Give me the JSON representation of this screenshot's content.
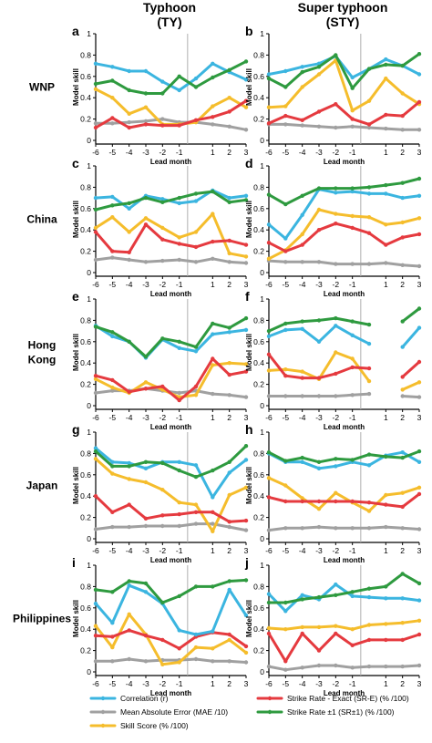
{
  "column_titles": [
    {
      "line1": "Typhoon",
      "line2": "(TY)"
    },
    {
      "line1": "Super typhoon",
      "line2": "(STY)"
    }
  ],
  "row_labels": [
    [
      "WNP"
    ],
    [
      "China"
    ],
    [
      "Hong",
      "Kong"
    ],
    [
      "Japan"
    ],
    [
      "Philippines"
    ]
  ],
  "colors": {
    "corr": "#3bb5e0",
    "mae": "#a0a0a0",
    "skill": "#f5bd2c",
    "sre": "#e53a3f",
    "sr1": "#2e9a3f",
    "axis": "#000000",
    "divider": "#b0b0b0"
  },
  "legend": [
    {
      "key": "corr",
      "label": "Correlation (r)"
    },
    {
      "key": "sre",
      "label": "Strike Rate - Exact (SR-E) (% /100)"
    },
    {
      "key": "mae",
      "label": "Mean Absolute Error (MAE /10)"
    },
    {
      "key": "sr1",
      "label": "Strike Rate ±1 (SR±1) (% /100)"
    },
    {
      "key": "skill",
      "label": "Skill Score (% /100)"
    }
  ],
  "chart_data": {
    "type": "line",
    "x": [
      -6,
      -5,
      -4,
      -3,
      -2,
      -1,
      0,
      1,
      2,
      3
    ],
    "x_tick_labels": [
      "-6",
      "-5",
      "-4",
      "-3",
      "-2",
      "-1",
      "1",
      "2",
      "3"
    ],
    "y_ticks": [
      "0",
      "0.2",
      "0.4",
      "0.6",
      "0.8",
      "1"
    ],
    "ylim": [
      0,
      1
    ],
    "xlabel": "Lead month",
    "ylabel": "Model skill",
    "divider_x": -0.5,
    "panels": [
      {
        "letter": "a",
        "row": 0,
        "col": 0,
        "series": {
          "corr": [
            0.72,
            0.69,
            0.65,
            0.65,
            0.55,
            0.47,
            0.58,
            0.72,
            0.64,
            0.57
          ],
          "mae": [
            0.16,
            0.16,
            0.17,
            0.18,
            0.2,
            0.17,
            0.17,
            0.15,
            0.13,
            0.1
          ],
          "skill": [
            0.48,
            0.4,
            0.25,
            0.31,
            0.15,
            0.15,
            0.17,
            0.32,
            0.4,
            0.31
          ],
          "sre": [
            0.12,
            0.21,
            0.12,
            0.15,
            0.14,
            0.14,
            0.19,
            0.22,
            0.27,
            0.37
          ],
          "sr1": [
            0.53,
            0.56,
            0.47,
            0.44,
            0.44,
            0.6,
            0.5,
            0.59,
            0.66,
            0.74
          ]
        }
      },
      {
        "letter": "b",
        "row": 0,
        "col": 1,
        "series": {
          "corr": [
            0.62,
            0.65,
            0.69,
            0.72,
            0.79,
            0.59,
            0.67,
            0.76,
            0.7,
            0.62
          ],
          "mae": [
            0.15,
            0.15,
            0.14,
            0.13,
            0.12,
            0.13,
            0.12,
            0.11,
            0.1,
            0.1
          ],
          "skill": [
            0.31,
            0.32,
            0.5,
            0.62,
            0.75,
            0.28,
            0.37,
            0.58,
            0.44,
            0.34
          ],
          "sre": [
            0.16,
            0.23,
            0.19,
            0.27,
            0.34,
            0.2,
            0.15,
            0.24,
            0.23,
            0.36
          ],
          "sr1": [
            0.58,
            0.5,
            0.64,
            0.69,
            0.8,
            0.49,
            0.67,
            0.71,
            0.7,
            0.81
          ]
        }
      },
      {
        "letter": "c",
        "row": 1,
        "col": 0,
        "series": {
          "corr": [
            0.7,
            0.71,
            0.6,
            0.72,
            0.69,
            0.65,
            0.67,
            0.77,
            0.7,
            0.72
          ],
          "mae": [
            0.12,
            0.14,
            0.12,
            0.1,
            0.11,
            0.12,
            0.1,
            0.13,
            0.1,
            0.09
          ],
          "skill": [
            0.42,
            0.52,
            0.38,
            0.51,
            0.42,
            0.33,
            0.38,
            0.55,
            0.18,
            0.15
          ],
          "sre": [
            0.38,
            0.2,
            0.19,
            0.45,
            0.31,
            0.27,
            0.24,
            0.29,
            0.3,
            0.26
          ],
          "sr1": [
            0.59,
            0.63,
            0.65,
            0.7,
            0.66,
            0.7,
            0.74,
            0.76,
            0.66,
            0.68
          ]
        }
      },
      {
        "letter": "d",
        "row": 1,
        "col": 1,
        "series": {
          "corr": [
            0.45,
            0.32,
            0.54,
            0.78,
            0.75,
            0.76,
            0.74,
            0.74,
            0.7,
            0.72
          ],
          "mae": [
            0.11,
            0.1,
            0.1,
            0.1,
            0.08,
            0.08,
            0.08,
            0.09,
            0.07,
            0.06
          ],
          "skill": [
            0.13,
            0.21,
            0.36,
            0.59,
            0.55,
            0.53,
            0.52,
            0.45,
            0.47,
            0.51
          ],
          "sre": [
            0.28,
            0.2,
            0.26,
            0.4,
            0.46,
            0.42,
            0.37,
            0.26,
            0.33,
            0.36
          ],
          "sr1": [
            0.73,
            0.64,
            0.72,
            0.79,
            0.79,
            0.79,
            0.8,
            0.82,
            0.84,
            0.88
          ]
        }
      },
      {
        "letter": "e",
        "row": 2,
        "col": 0,
        "series": {
          "corr": [
            0.75,
            0.65,
            0.6,
            0.45,
            0.62,
            0.54,
            0.51,
            0.67,
            0.69,
            0.71
          ],
          "mae": [
            0.12,
            0.14,
            0.14,
            0.16,
            0.14,
            0.12,
            0.14,
            0.11,
            0.1,
            0.08
          ],
          "skill": [
            0.25,
            0.17,
            0.12,
            0.22,
            0.15,
            0.08,
            0.1,
            0.38,
            0.4,
            0.39
          ],
          "sre": [
            0.28,
            0.24,
            0.13,
            0.16,
            0.18,
            0.05,
            0.18,
            0.44,
            0.29,
            0.32
          ],
          "sr1": [
            0.74,
            0.69,
            0.6,
            0.46,
            0.63,
            0.6,
            0.55,
            0.77,
            0.73,
            0.82
          ]
        }
      },
      {
        "letter": "f",
        "row": 2,
        "col": 1,
        "series": {
          "corr": [
            0.65,
            0.71,
            0.72,
            0.6,
            0.75,
            0.66,
            0.58,
            null,
            0.55,
            0.73
          ],
          "mae": [
            0.09,
            0.09,
            0.09,
            0.09,
            0.09,
            0.1,
            0.11,
            null,
            0.09,
            0.08
          ],
          "skill": [
            0.33,
            0.34,
            0.32,
            0.25,
            0.5,
            0.44,
            0.23,
            null,
            0.15,
            0.22
          ],
          "sre": [
            0.48,
            0.28,
            0.26,
            0.26,
            0.3,
            0.36,
            0.35,
            null,
            0.27,
            0.41
          ],
          "sr1": [
            0.7,
            0.77,
            0.79,
            0.8,
            0.82,
            0.79,
            0.76,
            null,
            0.79,
            0.91
          ]
        }
      },
      {
        "letter": "g",
        "row": 3,
        "col": 0,
        "series": {
          "corr": [
            0.85,
            0.72,
            0.71,
            0.66,
            0.72,
            0.72,
            0.69,
            0.39,
            0.62,
            0.74
          ],
          "mae": [
            0.09,
            0.11,
            0.11,
            0.12,
            0.12,
            0.12,
            0.14,
            0.14,
            0.11,
            0.08
          ],
          "skill": [
            0.75,
            0.61,
            0.56,
            0.53,
            0.46,
            0.34,
            0.32,
            0.07,
            0.41,
            0.48
          ],
          "sre": [
            0.4,
            0.25,
            0.32,
            0.19,
            0.22,
            0.23,
            0.25,
            0.25,
            0.16,
            0.17
          ],
          "sr1": [
            0.82,
            0.68,
            0.68,
            0.72,
            0.71,
            0.64,
            0.58,
            0.64,
            0.72,
            0.87
          ]
        }
      },
      {
        "letter": "h",
        "row": 3,
        "col": 1,
        "series": {
          "corr": [
            0.8,
            0.72,
            0.72,
            0.66,
            0.68,
            0.72,
            0.69,
            0.78,
            0.81,
            0.72
          ],
          "mae": [
            0.08,
            0.1,
            0.1,
            0.11,
            0.1,
            0.1,
            0.1,
            0.11,
            0.1,
            0.09
          ],
          "skill": [
            0.57,
            0.5,
            0.38,
            0.28,
            0.43,
            0.34,
            0.26,
            0.41,
            0.43,
            0.48
          ],
          "sre": [
            0.39,
            0.35,
            0.35,
            0.35,
            0.35,
            0.35,
            0.34,
            0.32,
            0.3,
            0.42
          ],
          "sr1": [
            0.81,
            0.73,
            0.76,
            0.72,
            0.75,
            0.74,
            0.79,
            0.77,
            0.76,
            0.82
          ]
        }
      },
      {
        "letter": "i",
        "row": 4,
        "col": 0,
        "series": {
          "corr": [
            0.64,
            0.46,
            0.81,
            0.75,
            0.64,
            0.39,
            0.35,
            0.38,
            0.77,
            0.53
          ],
          "mae": [
            0.1,
            0.1,
            0.12,
            0.1,
            0.11,
            0.11,
            0.12,
            0.1,
            0.1,
            0.09
          ],
          "skill": [
            0.43,
            0.23,
            0.54,
            0.35,
            0.07,
            0.09,
            0.23,
            0.22,
            0.3,
            0.18
          ],
          "sre": [
            0.34,
            0.33,
            0.39,
            0.34,
            0.3,
            0.22,
            0.33,
            0.37,
            0.35,
            0.24
          ],
          "sr1": [
            0.77,
            0.75,
            0.85,
            0.83,
            0.65,
            0.71,
            0.8,
            0.8,
            0.85,
            0.86
          ]
        }
      },
      {
        "letter": "j",
        "row": 4,
        "col": 1,
        "series": {
          "corr": [
            0.73,
            0.57,
            0.72,
            0.68,
            0.82,
            0.71,
            0.7,
            0.69,
            0.69,
            0.67
          ],
          "mae": [
            0.05,
            0.02,
            0.04,
            0.06,
            0.06,
            0.04,
            0.05,
            0.05,
            0.05,
            0.06
          ],
          "skill": [
            0.41,
            0.4,
            0.42,
            0.42,
            0.43,
            0.4,
            0.44,
            0.45,
            0.46,
            0.48
          ],
          "sre": [
            0.36,
            0.1,
            0.36,
            0.2,
            0.36,
            0.25,
            0.3,
            0.3,
            0.3,
            0.35
          ],
          "sr1": [
            0.65,
            0.65,
            0.68,
            0.7,
            0.72,
            0.75,
            0.78,
            0.8,
            0.92,
            0.83
          ]
        }
      }
    ]
  }
}
